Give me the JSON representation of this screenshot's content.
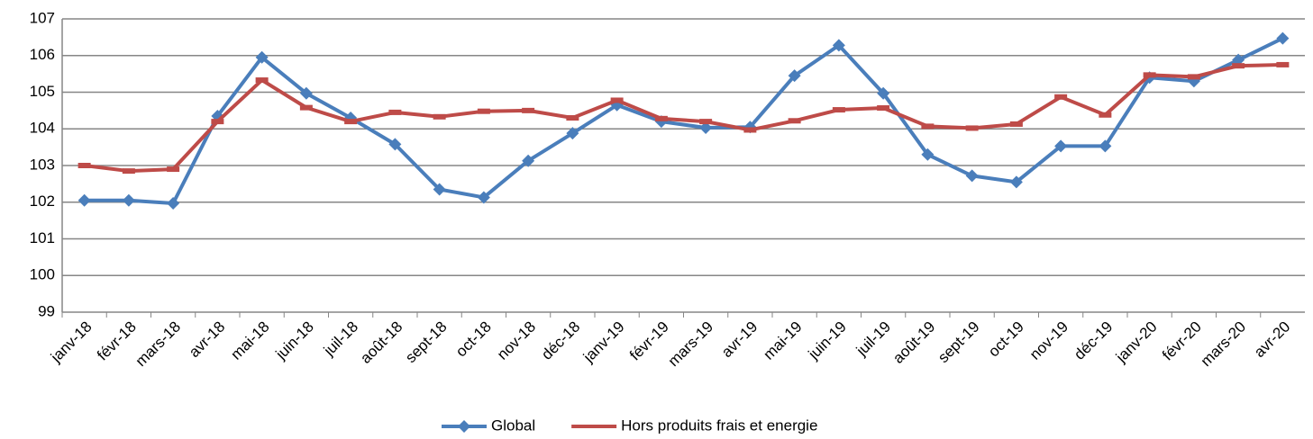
{
  "chart_data": {
    "type": "line",
    "categories": [
      "janv-18",
      "févr-18",
      "mars-18",
      "avr-18",
      "mai-18",
      "juin-18",
      "juil-18",
      "août-18",
      "sept-18",
      "oct-18",
      "nov-18",
      "déc-18",
      "janv-19",
      "févr-19",
      "mars-19",
      "avr-19",
      "mai-19",
      "juin-19",
      "juil-19",
      "août-19",
      "sept-19",
      "oct-19",
      "nov-19",
      "déc-19",
      "janv-20",
      "févr-20",
      "mars-20",
      "avr-20"
    ],
    "series": [
      {
        "name": "Global",
        "color": "#4a7ebb",
        "marker": "diamond",
        "values": [
          102.05,
          102.05,
          101.97,
          104.35,
          105.95,
          104.97,
          104.3,
          103.58,
          102.35,
          102.13,
          103.13,
          103.88,
          104.65,
          104.2,
          104.03,
          104.05,
          105.45,
          106.28,
          104.97,
          103.3,
          102.72,
          102.55,
          103.53,
          103.53,
          105.4,
          105.3,
          105.88,
          106.47
        ]
      },
      {
        "name": "Hors produits frais et energie",
        "color": "#be4b48",
        "marker": "square",
        "values": [
          103.0,
          102.85,
          102.9,
          104.2,
          105.33,
          104.58,
          104.2,
          104.45,
          104.33,
          104.48,
          104.5,
          104.3,
          104.78,
          104.28,
          104.2,
          103.97,
          104.22,
          104.52,
          104.57,
          104.07,
          104.02,
          104.13,
          104.87,
          104.38,
          105.47,
          105.42,
          105.72,
          105.75
        ]
      }
    ],
    "ylim": [
      99,
      107
    ],
    "yticks": [
      99,
      100,
      101,
      102,
      103,
      104,
      105,
      106,
      107
    ],
    "grid": true,
    "legend": "bottom"
  }
}
